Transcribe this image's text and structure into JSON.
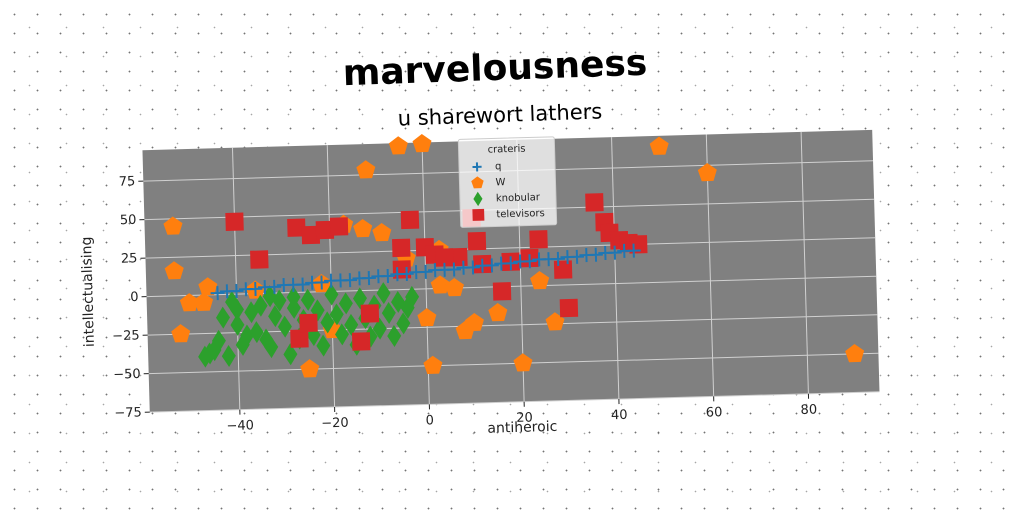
{
  "chart_data": {
    "type": "scatter",
    "title": "marvelousness",
    "subtitle": "u sharewort lathers",
    "xlabel": "antiheroic",
    "ylabel": "intellectualising",
    "xlim": [
      -59,
      95
    ],
    "ylim": [
      -75,
      95
    ],
    "xticks": [
      -40,
      -20,
      0,
      20,
      40,
      60,
      80
    ],
    "yticks": [
      -75,
      -50,
      -25,
      0,
      25,
      50,
      75
    ],
    "xtick_labels": [
      "−40",
      "−20",
      "0",
      "20",
      "40",
      "60",
      "80"
    ],
    "ytick_labels": [
      "−75",
      "−50",
      "−25",
      "0",
      "25",
      "50",
      "75"
    ],
    "grid": true,
    "plot_background": "#808080",
    "legend": {
      "title": "crateris",
      "placement": "top-center"
    },
    "series": [
      {
        "name": "q",
        "marker": "plus",
        "color": "#1f77b4",
        "points": [
          [
            -44,
            1
          ],
          [
            -42,
            2
          ],
          [
            -40,
            2
          ],
          [
            -38,
            3
          ],
          [
            -36,
            3
          ],
          [
            -34,
            4
          ],
          [
            -32,
            4
          ],
          [
            -30,
            5
          ],
          [
            -28,
            5
          ],
          [
            -26,
            5
          ],
          [
            -24,
            6
          ],
          [
            -22,
            6
          ],
          [
            -20,
            7
          ],
          [
            -18,
            7
          ],
          [
            -16,
            7
          ],
          [
            -14,
            8
          ],
          [
            -12,
            8
          ],
          [
            -10,
            9
          ],
          [
            -8,
            9
          ],
          [
            -6,
            10
          ],
          [
            -4,
            10
          ],
          [
            -2,
            11
          ],
          [
            0,
            11
          ],
          [
            2,
            12
          ],
          [
            4,
            12
          ],
          [
            6,
            12
          ],
          [
            8,
            13
          ],
          [
            10,
            13
          ],
          [
            12,
            14
          ],
          [
            14,
            14
          ],
          [
            16,
            15
          ],
          [
            18,
            15
          ],
          [
            20,
            16
          ],
          [
            22,
            16
          ],
          [
            24,
            17
          ],
          [
            26,
            17
          ],
          [
            28,
            17
          ],
          [
            30,
            18
          ],
          [
            32,
            18
          ],
          [
            34,
            19
          ],
          [
            36,
            19
          ],
          [
            38,
            20
          ],
          [
            40,
            20
          ],
          [
            42,
            21
          ],
          [
            44,
            21
          ]
        ]
      },
      {
        "name": "W",
        "marker": "pentagon",
        "color": "#ff7f0e",
        "points": [
          [
            -53,
            45
          ],
          [
            -53,
            16
          ],
          [
            -50,
            -5
          ],
          [
            -47,
            -5
          ],
          [
            -46,
            5
          ],
          [
            -52,
            -25
          ],
          [
            -12,
            78
          ],
          [
            -5,
            93
          ],
          [
            0,
            94
          ],
          [
            -17,
            43
          ],
          [
            -13,
            40
          ],
          [
            -9,
            37
          ],
          [
            -4,
            20
          ],
          [
            3,
            25
          ],
          [
            1,
            -50
          ],
          [
            0,
            -19
          ],
          [
            3,
            2
          ],
          [
            6,
            0
          ],
          [
            8,
            -28
          ],
          [
            10,
            -23
          ],
          [
            15,
            -17
          ],
          [
            20,
            -50
          ],
          [
            24,
            3
          ],
          [
            27,
            -24
          ],
          [
            -25,
            -50
          ],
          [
            -20,
            -25
          ],
          [
            50,
            88
          ],
          [
            60,
            70
          ],
          [
            90,
            -50
          ],
          [
            -36,
            2
          ],
          [
            -22,
            5
          ]
        ]
      },
      {
        "name": "knobular",
        "marker": "diamond",
        "color": "#2ca02c",
        "points": [
          [
            -47,
            -40
          ],
          [
            -45,
            -36
          ],
          [
            -44,
            -30
          ],
          [
            -43,
            -15
          ],
          [
            -42,
            -40
          ],
          [
            -41,
            -5
          ],
          [
            -40,
            -20
          ],
          [
            -39,
            -33
          ],
          [
            -38,
            -27
          ],
          [
            -37,
            -12
          ],
          [
            -36,
            -25
          ],
          [
            -35,
            -8
          ],
          [
            -34,
            -30
          ],
          [
            -33,
            -2
          ],
          [
            -32,
            -15
          ],
          [
            -31,
            -5
          ],
          [
            -30,
            -22
          ],
          [
            -29,
            -40
          ],
          [
            -28,
            -10
          ],
          [
            -27,
            -30
          ],
          [
            -26,
            -18
          ],
          [
            -25,
            -5
          ],
          [
            -24,
            -28
          ],
          [
            -23,
            -12
          ],
          [
            -22,
            -35
          ],
          [
            -21,
            -20
          ],
          [
            -20,
            -2
          ],
          [
            -19,
            -15
          ],
          [
            -18,
            -28
          ],
          [
            -17,
            -8
          ],
          [
            -16,
            -22
          ],
          [
            -15,
            -35
          ],
          [
            -14,
            -5
          ],
          [
            -13,
            -18
          ],
          [
            -12,
            -30
          ],
          [
            -11,
            -10
          ],
          [
            -10,
            -25
          ],
          [
            -9,
            -2
          ],
          [
            -8,
            -15
          ],
          [
            -7,
            -30
          ],
          [
            -6,
            -8
          ],
          [
            -5,
            -22
          ],
          [
            -4,
            -12
          ],
          [
            -3,
            -5
          ],
          [
            -46,
            -38
          ],
          [
            -40,
            -10
          ],
          [
            -33,
            -35
          ],
          [
            -28,
            -3
          ]
        ]
      },
      {
        "name": "televisors",
        "marker": "square",
        "color": "#d62728",
        "points": [
          [
            -40,
            47
          ],
          [
            -35,
            22
          ],
          [
            -27,
            42
          ],
          [
            -24,
            37
          ],
          [
            -21,
            40
          ],
          [
            -18,
            42
          ],
          [
            -5,
            27
          ],
          [
            -3,
            45
          ],
          [
            0,
            27
          ],
          [
            2,
            22
          ],
          [
            7,
            20
          ],
          [
            10,
            45
          ],
          [
            11,
            30
          ],
          [
            12,
            15
          ],
          [
            18,
            16
          ],
          [
            22,
            18
          ],
          [
            24,
            30
          ],
          [
            29,
            10
          ],
          [
            30,
            -15
          ],
          [
            36,
            53
          ],
          [
            38,
            40
          ],
          [
            39,
            33
          ],
          [
            41,
            28
          ],
          [
            43,
            26
          ],
          [
            45,
            25
          ],
          [
            -12,
            -15
          ],
          [
            -14,
            -33
          ],
          [
            -27,
            -30
          ],
          [
            -25,
            -20
          ],
          [
            -5,
            13
          ],
          [
            4,
            20
          ],
          [
            16,
            -3
          ]
        ]
      }
    ]
  }
}
